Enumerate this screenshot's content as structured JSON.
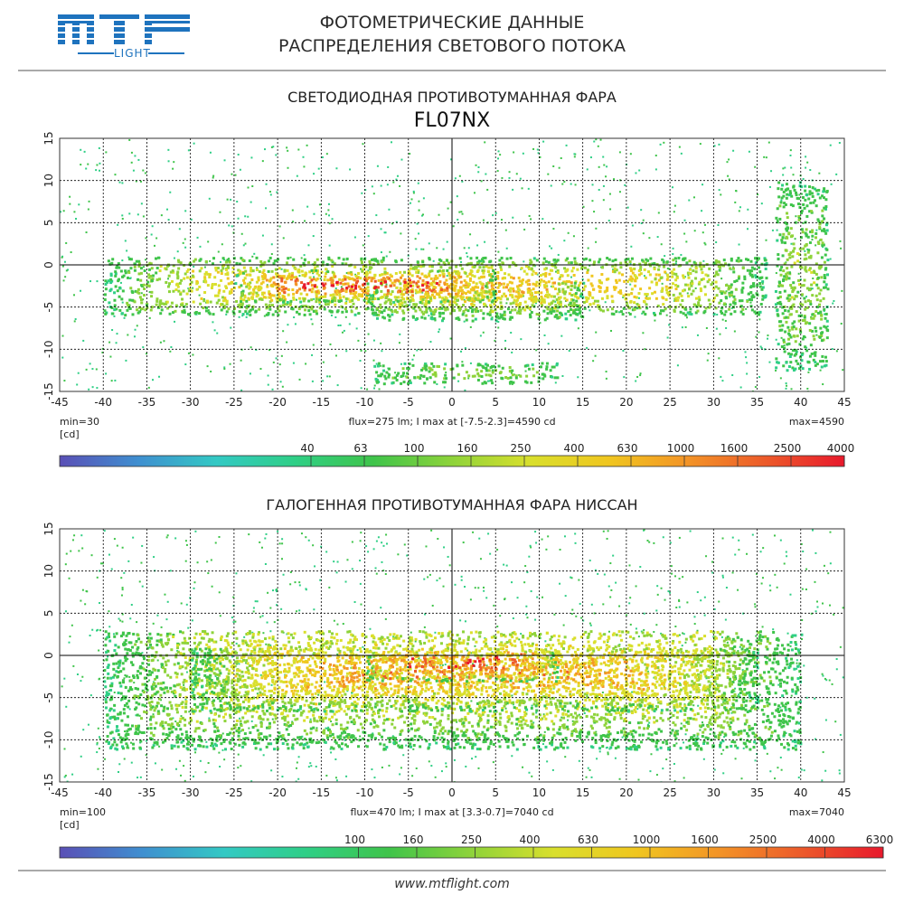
{
  "header": {
    "logo_text": "MTF",
    "logo_sub": "LIGHT",
    "title_line1": "ФОТОМЕТРИЧЕСКИЕ ДАННЫЕ",
    "title_line2": "РАСПРЕДЕЛЕНИЯ СВЕТОВОГО ПОТОКА"
  },
  "colors": {
    "scale": [
      "#5a4fb6",
      "#3f8fd0",
      "#33c9c4",
      "#2fcf86",
      "#3fc44a",
      "#8ed33a",
      "#d9df2c",
      "#f0c61f",
      "#f39427",
      "#ec5a2a",
      "#e8192c"
    ],
    "background": "#ffffff",
    "accent": "#1e73be"
  },
  "chart_data": [
    {
      "type": "heatmap",
      "title": "СВЕТОДИОДНАЯ ПРОТИВОТУМАННАЯ ФАРА",
      "subtitle": "FL07NX",
      "x_ticks": [
        "-45",
        "-40",
        "-35",
        "-30",
        "-25",
        "-20",
        "-15",
        "-10",
        "-5",
        "0",
        "5",
        "10",
        "15",
        "20",
        "25",
        "30",
        "35",
        "40",
        "45"
      ],
      "y_ticks": [
        "15",
        "10",
        "5",
        "0",
        "-5",
        "-10",
        "-15"
      ],
      "xlim": [
        -45,
        45
      ],
      "ylim": [
        -15,
        15
      ],
      "grid": true,
      "min_label": "min=30",
      "unit_label": "[cd]",
      "info_label": "flux=275 lm; I max at [-7.5-2.3]=4590 cd",
      "max_label": "max=4590",
      "min_value": 30,
      "max_value": 4590,
      "flux_lm": 275,
      "peak": {
        "x": -7.5,
        "y": -2.3,
        "value": 4590
      },
      "scale_labels": [
        "40",
        "63",
        "100",
        "160",
        "250",
        "400",
        "630",
        "1000",
        "1600",
        "2500",
        "4000"
      ],
      "regions": [
        {
          "x": [
            -40,
            36
          ],
          "y": [
            -6,
            1
          ],
          "peak_y": -2.3,
          "level": 0.62
        },
        {
          "x": [
            -10,
            15
          ],
          "y": [
            -9,
            -2
          ],
          "peak_y": -3,
          "level": 0.55
        },
        {
          "x": [
            -9,
            12
          ],
          "y": [
            -14,
            -11.5
          ],
          "peak_y": -12.7,
          "level": 0.25
        },
        {
          "x": [
            37,
            43
          ],
          "y": [
            -13,
            10
          ],
          "peak_y": -1,
          "level": 0.28
        },
        {
          "x": [
            -25,
            5
          ],
          "y": [
            -4.5,
            -0.5
          ],
          "peak_y": -2.3,
          "level": 1.0
        }
      ]
    },
    {
      "type": "heatmap",
      "title": "ГАЛОГЕННАЯ ПРОТИВОТУМАННАЯ ФАРА НИССАН",
      "subtitle": "",
      "x_ticks": [
        "-45",
        "-40",
        "-35",
        "-30",
        "-25",
        "-20",
        "-15",
        "-10",
        "-5",
        "0",
        "5",
        "10",
        "15",
        "20",
        "25",
        "30",
        "35",
        "40",
        "45"
      ],
      "y_ticks": [
        "15",
        "10",
        "5",
        "0",
        "-5",
        "-10",
        "-15"
      ],
      "xlim": [
        -45,
        45
      ],
      "ylim": [
        -15,
        15
      ],
      "grid": true,
      "min_label": "min=100",
      "unit_label": "[cd]",
      "info_label": "flux=470 lm; I max at [3.3-0.7]=7040 cd",
      "max_label": "max=7040",
      "min_value": 100,
      "max_value": 7040,
      "flux_lm": 470,
      "peak": {
        "x": 3.3,
        "y": -0.7,
        "value": 7040
      },
      "scale_labels": [
        "100",
        "160",
        "250",
        "400",
        "630",
        "1000",
        "1600",
        "2500",
        "4000",
        "6300"
      ],
      "regions": [
        {
          "x": [
            -40,
            40
          ],
          "y": [
            -15,
            3
          ],
          "peak_y": -2,
          "level": 0.5
        },
        {
          "x": [
            -30,
            35
          ],
          "y": [
            -8,
            1
          ],
          "peak_y": -2,
          "level": 0.72
        },
        {
          "x": [
            -10,
            12
          ],
          "y": [
            -4,
            0.5
          ],
          "peak_y": -0.7,
          "level": 1.0
        }
      ]
    }
  ],
  "footer": {
    "url": "www.mtflight.com"
  }
}
